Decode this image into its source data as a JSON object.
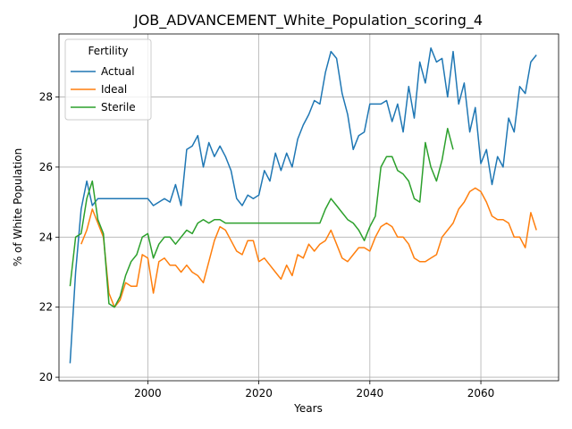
{
  "chart_data": {
    "type": "line",
    "title": "JOB_ADVANCEMENT_White_Population_scoring_4",
    "xlabel": "Years",
    "ylabel": "% of White Population",
    "xlim": [
      1984,
      2074
    ],
    "ylim": [
      19.9,
      29.8
    ],
    "xticks": [
      2000,
      2020,
      2040,
      2060
    ],
    "yticks": [
      20,
      22,
      24,
      26,
      28
    ],
    "grid": true,
    "legend": {
      "title": "Fertility",
      "position": "top-left"
    },
    "series": [
      {
        "name": "Actual",
        "color": "#1f77b4",
        "x": [
          1986,
          1987,
          1988,
          1989,
          1990,
          1991,
          1992,
          1993,
          1994,
          1995,
          1996,
          1997,
          1998,
          1999,
          2000,
          2001,
          2002,
          2003,
          2004,
          2005,
          2006,
          2007,
          2008,
          2009,
          2010,
          2011,
          2012,
          2013,
          2014,
          2015,
          2016,
          2017,
          2018,
          2019,
          2020,
          2021,
          2022,
          2023,
          2024,
          2025,
          2026,
          2027,
          2028,
          2029,
          2030,
          2031,
          2032,
          2033,
          2034,
          2035,
          2036,
          2037,
          2038,
          2039,
          2040,
          2041,
          2042,
          2043,
          2044,
          2045,
          2046,
          2047,
          2048,
          2049,
          2050,
          2051,
          2052,
          2053,
          2054,
          2055,
          2056,
          2057,
          2058,
          2059,
          2060,
          2061,
          2062,
          2063,
          2064,
          2065,
          2066,
          2067,
          2068,
          2069,
          2070
        ],
        "y": [
          20.4,
          23.0,
          24.8,
          25.6,
          24.9,
          25.1,
          25.1,
          25.1,
          25.1,
          25.1,
          25.1,
          25.1,
          25.1,
          25.1,
          25.1,
          24.9,
          25.0,
          25.1,
          25.0,
          25.5,
          24.9,
          26.5,
          26.6,
          26.9,
          26.0,
          26.7,
          26.3,
          26.6,
          26.3,
          25.9,
          25.1,
          24.9,
          25.2,
          25.1,
          25.2,
          25.9,
          25.6,
          26.4,
          25.9,
          26.4,
          26.0,
          26.8,
          27.2,
          27.5,
          27.9,
          27.8,
          28.7,
          29.3,
          29.1,
          28.1,
          27.5,
          26.5,
          26.9,
          27.0,
          27.8,
          27.8,
          27.8,
          27.9,
          27.3,
          27.8,
          27.0,
          28.3,
          27.4,
          29.0,
          28.4,
          29.4,
          29.0,
          29.1,
          28.0,
          29.3,
          27.8,
          28.4,
          27.0,
          27.7,
          26.1,
          26.5,
          25.5,
          26.3,
          26.0,
          27.4,
          27.0,
          28.3,
          28.1,
          29.0,
          29.2
        ]
      },
      {
        "name": "Ideal",
        "color": "#ff7f0e",
        "x": [
          1988,
          1989,
          1990,
          1991,
          1992,
          1993,
          1994,
          1995,
          1996,
          1997,
          1998,
          1999,
          2000,
          2001,
          2002,
          2003,
          2004,
          2005,
          2006,
          2007,
          2008,
          2009,
          2010,
          2011,
          2012,
          2013,
          2014,
          2015,
          2016,
          2017,
          2018,
          2019,
          2020,
          2021,
          2022,
          2023,
          2024,
          2025,
          2026,
          2027,
          2028,
          2029,
          2030,
          2031,
          2032,
          2033,
          2034,
          2035,
          2036,
          2037,
          2038,
          2039,
          2040,
          2041,
          2042,
          2043,
          2044,
          2045,
          2046,
          2047,
          2048,
          2049,
          2050,
          2051,
          2052,
          2053,
          2054,
          2055,
          2056,
          2057,
          2058,
          2059,
          2060,
          2061,
          2062,
          2063,
          2064,
          2065,
          2066,
          2067,
          2068,
          2069,
          2070
        ],
        "y": [
          23.8,
          24.2,
          24.8,
          24.4,
          24.0,
          22.4,
          22.0,
          22.2,
          22.7,
          22.6,
          22.6,
          23.5,
          23.4,
          22.4,
          23.3,
          23.4,
          23.2,
          23.2,
          23.0,
          23.2,
          23.0,
          22.9,
          22.7,
          23.3,
          23.9,
          24.3,
          24.2,
          23.9,
          23.6,
          23.5,
          23.9,
          23.9,
          23.3,
          23.4,
          23.2,
          23.0,
          22.8,
          23.2,
          22.9,
          23.5,
          23.4,
          23.8,
          23.6,
          23.8,
          23.9,
          24.2,
          23.8,
          23.4,
          23.3,
          23.5,
          23.7,
          23.7,
          23.6,
          24.0,
          24.3,
          24.4,
          24.3,
          24.0,
          24.0,
          23.8,
          23.4,
          23.3,
          23.3,
          23.4,
          23.5,
          24.0,
          24.2,
          24.4,
          24.8,
          25.0,
          25.3,
          25.4,
          25.3,
          25.0,
          24.6,
          24.5,
          24.5,
          24.4,
          24.0,
          24.0,
          23.7,
          24.7,
          24.2
        ]
      },
      {
        "name": "Sterile",
        "color": "#2ca02c",
        "x": [
          1986,
          1987,
          1988,
          1989,
          1990,
          1991,
          1992,
          1993,
          1994,
          1995,
          1996,
          1997,
          1998,
          1999,
          2000,
          2001,
          2002,
          2003,
          2004,
          2005,
          2006,
          2007,
          2008,
          2009,
          2010,
          2011,
          2012,
          2013,
          2014,
          2015,
          2016,
          2017,
          2018,
          2019,
          2020,
          2021,
          2022,
          2023,
          2024,
          2025,
          2026,
          2027,
          2028,
          2029,
          2030,
          2031,
          2032,
          2033,
          2034,
          2035,
          2036,
          2037,
          2038,
          2039,
          2040,
          2041,
          2042,
          2043,
          2044,
          2045,
          2046,
          2047,
          2048,
          2049,
          2050,
          2051,
          2052,
          2053,
          2054,
          2055
        ],
        "y": [
          22.6,
          24.0,
          24.1,
          25.1,
          25.6,
          24.5,
          24.1,
          22.1,
          22.0,
          22.3,
          22.9,
          23.3,
          23.5,
          24.0,
          24.1,
          23.4,
          23.8,
          24.0,
          24.0,
          23.8,
          24.0,
          24.2,
          24.1,
          24.4,
          24.5,
          24.4,
          24.5,
          24.5,
          24.4,
          24.4,
          24.4,
          24.4,
          24.4,
          24.4,
          24.4,
          24.4,
          24.4,
          24.4,
          24.4,
          24.4,
          24.4,
          24.4,
          24.4,
          24.4,
          24.4,
          24.4,
          24.8,
          25.1,
          24.9,
          24.7,
          24.5,
          24.4,
          24.2,
          23.9,
          24.3,
          24.6,
          26.0,
          26.3,
          26.3,
          25.9,
          25.8,
          25.6,
          25.1,
          25.0,
          26.7,
          26.0,
          25.6,
          26.2,
          27.1,
          26.5
        ]
      }
    ]
  }
}
